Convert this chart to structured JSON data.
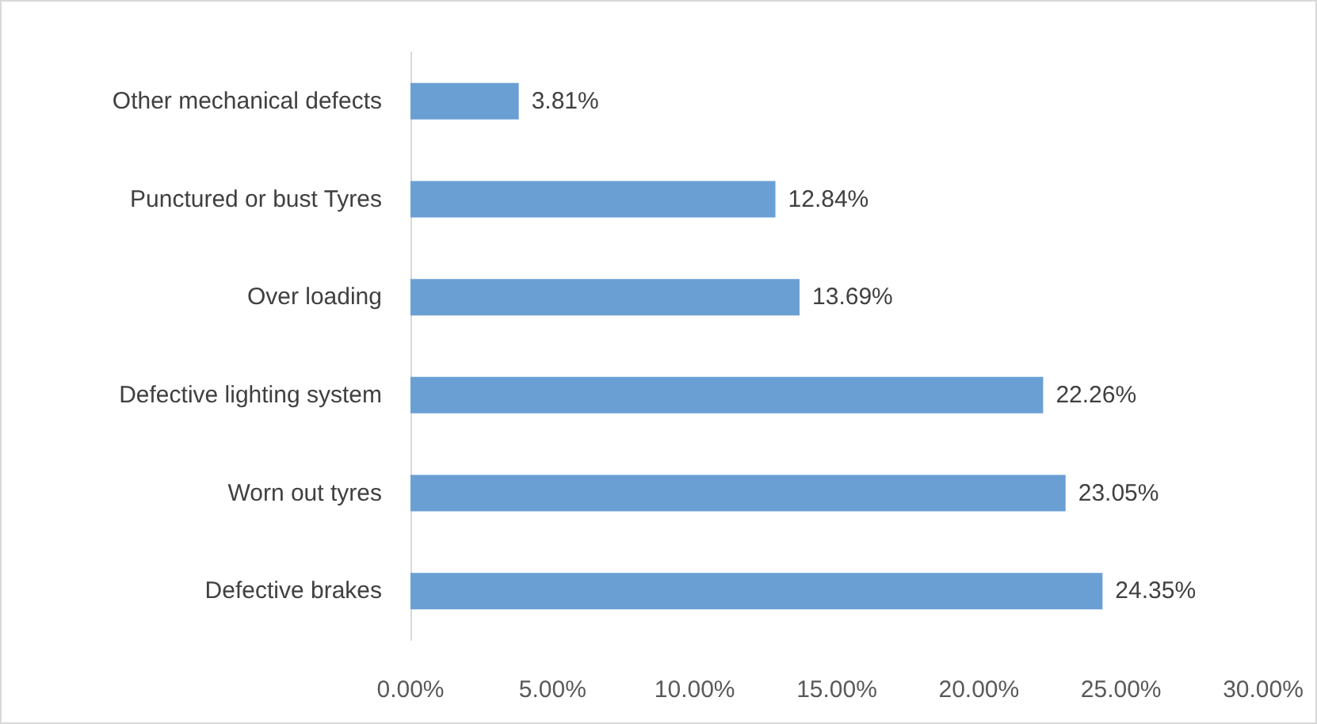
{
  "chart_data": {
    "type": "bar",
    "orientation": "horizontal",
    "categories": [
      "Other mechanical defects",
      "Punctured or bust Tyres",
      "Over loading",
      "Defective lighting system",
      "Worn out tyres",
      "Defective brakes"
    ],
    "values": [
      3.81,
      12.84,
      13.69,
      22.26,
      23.05,
      24.35
    ],
    "value_labels": [
      "3.81%",
      "12.84%",
      "13.69%",
      "22.26%",
      "23.05%",
      "24.35%"
    ],
    "color": "#6a9fd4",
    "xlim": [
      0,
      30
    ],
    "xticks": [
      {
        "value": 0,
        "label": "0.00%"
      },
      {
        "value": 5,
        "label": "5.00%"
      },
      {
        "value": 10,
        "label": "10.00%"
      },
      {
        "value": 15,
        "label": "15.00%"
      },
      {
        "value": 20,
        "label": "20.00%"
      },
      {
        "value": 25,
        "label": "25.00%"
      },
      {
        "value": 30,
        "label": "30.00%"
      }
    ],
    "grid": false
  }
}
